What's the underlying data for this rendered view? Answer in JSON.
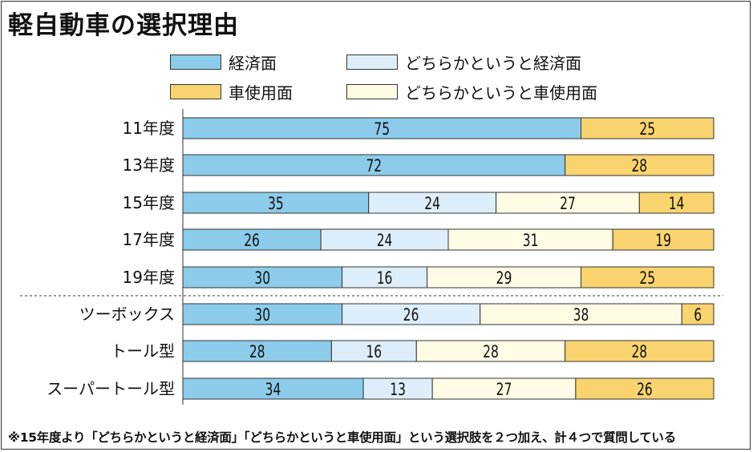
{
  "chart_data": {
    "type": "bar",
    "orientation": "horizontal",
    "stacked": true,
    "title": "軽自動車の選択理由",
    "categories": [
      "11年度",
      "13年度",
      "15年度",
      "17年度",
      "19年度",
      "ツーボックス",
      "トール型",
      "スーパートール型"
    ],
    "series": [
      {
        "name": "経済面",
        "color": "#8ccbea",
        "values": [
          75,
          72,
          35,
          26,
          30,
          30,
          28,
          34
        ]
      },
      {
        "name": "どちらかというと経済面",
        "color": "#ddeefa",
        "values": [
          null,
          null,
          24,
          24,
          16,
          26,
          16,
          13
        ]
      },
      {
        "name": "どちらかというと車使用面",
        "color": "#fffbe5",
        "values": [
          null,
          null,
          27,
          31,
          29,
          38,
          28,
          27
        ]
      },
      {
        "name": "車使用面",
        "color": "#f9d36e",
        "values": [
          25,
          28,
          14,
          19,
          25,
          6,
          28,
          26
        ]
      }
    ],
    "xlim": [
      0,
      100
    ],
    "legend_position": "top",
    "separator_after_category": 4
  },
  "note": "※15年度より「どちらかというと経済面」「どちらかというと車使用面」という選択肢を２つ加え、計４つで質問している"
}
